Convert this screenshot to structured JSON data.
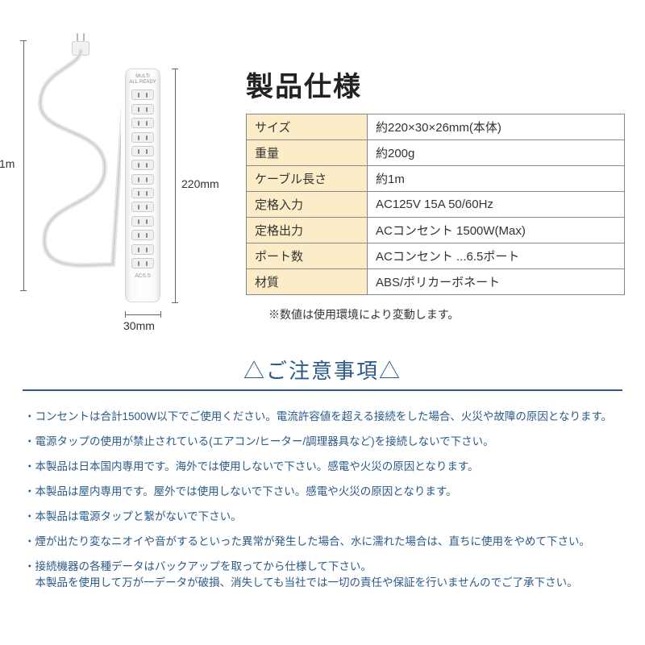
{
  "diagram": {
    "strip_top_label": "MULTI\nALL·READY",
    "strip_bottom_label": "AC6.5",
    "dim_cable": "1m",
    "dim_height": "220mm",
    "dim_width": "30mm"
  },
  "spec": {
    "title": "製品仕様",
    "rows": [
      {
        "label": "サイズ",
        "value": "約220×30×26mm(本体)"
      },
      {
        "label": "重量",
        "value": "約200g"
      },
      {
        "label": "ケーブル長さ",
        "value": "約1m"
      },
      {
        "label": "定格入力",
        "value": "AC125V 15A 50/60Hz"
      },
      {
        "label": "定格出力",
        "value": "ACコンセント 1500W(Max)"
      },
      {
        "label": "ポート数",
        "value": "ACコンセント ...6.5ポート"
      },
      {
        "label": "材質",
        "value": "ABS/ポリカーボネート"
      }
    ],
    "note": "※数値は使用環境により変動します。",
    "label_bg": "#fdecc8",
    "border_color": "#888888"
  },
  "notice": {
    "title": "△ご注意事項△",
    "title_color": "#2a5a8a",
    "items": [
      "・コンセントは合計1500W以下でご使用ください。電流許容値を超える接続をした場合、火災や故障の原因となります。",
      "・電源タップの使用が禁止されている(エアコン/ヒーター/調理器具など)を接続しないで下さい。",
      "・本製品は日本国内専用です。海外では使用しないで下さい。感電や火災の原因となります。",
      "・本製品は屋内専用です。屋外では使用しないで下さい。感電や火災の原因となります。",
      "・本製品は電源タップと繋がないで下さい。",
      "・煙が出たり変なニオイや音がするといった異常が発生した場合、水に濡れた場合は、直ちに使用をやめて下さい。",
      "・接続機器の各種データはバックアップを取ってから仕様して下さい。\n　本製品を使用して万が一データが破損、消失しても当社では一切の責任や保証を行いませんのでご了承下さい。"
    ]
  },
  "colors": {
    "background": "#ffffff",
    "text": "#333333"
  }
}
